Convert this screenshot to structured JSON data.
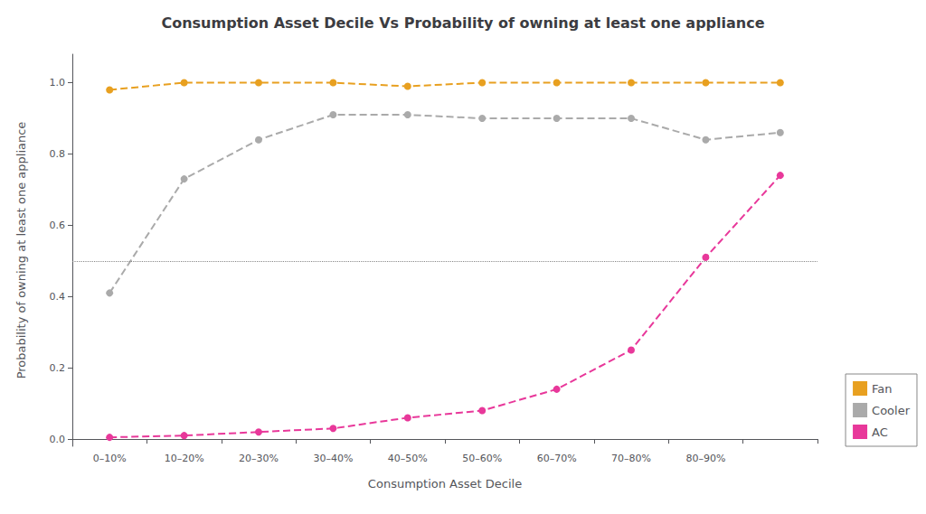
{
  "chart_data": {
    "type": "line",
    "title": "Consumption Asset Decile Vs Probability of owning at least one appliance",
    "xlabel": "Consumption Asset Decile",
    "ylabel": "Probability of owning at least one appliance",
    "categories": [
      "0–10%",
      "10–20%",
      "20–30%",
      "30–40%",
      "40–50%",
      "50–60%",
      "60–70%",
      "70–80%",
      "80–90%",
      null
    ],
    "series": [
      {
        "name": "Fan",
        "color": "#E8A020",
        "values": [
          0.98,
          1.0,
          1.0,
          1.0,
          0.99,
          1.0,
          1.0,
          1.0,
          1.0,
          1.0
        ]
      },
      {
        "name": "Cooler",
        "color": "#AAAAAA",
        "values": [
          0.41,
          0.73,
          0.84,
          0.91,
          0.91,
          0.9,
          0.9,
          0.9,
          0.84,
          0.86
        ]
      },
      {
        "name": "AC",
        "color": "#E8389A",
        "values": [
          0.005,
          0.01,
          0.02,
          0.03,
          0.06,
          0.08,
          0.14,
          0.25,
          0.51,
          0.74
        ]
      }
    ],
    "hline": {
      "value": 0.5,
      "color": "#888888",
      "line_style": "dotted"
    },
    "ylim": [
      -0.02,
      1.08
    ],
    "yticks": [
      {
        "value": 0.0,
        "label": "0.0"
      },
      0.2,
      0.4,
      0.6,
      0.8,
      {
        "value": 1.0,
        "label": "1.0"
      }
    ],
    "grid": false,
    "legend": "lower right",
    "marker": "circle",
    "line_style": "dashed"
  }
}
